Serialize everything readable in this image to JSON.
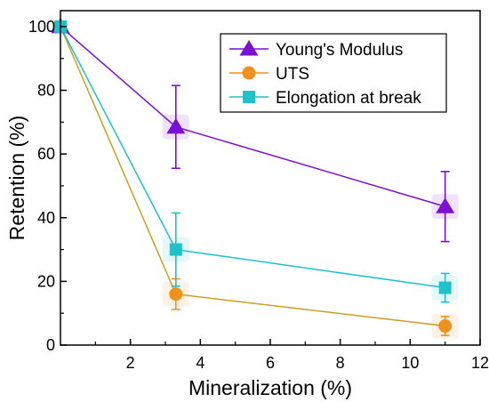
{
  "chart_data": {
    "type": "line",
    "title": "",
    "xlabel": "Mineralization (%)",
    "ylabel": "Retention (%)",
    "xlim": [
      0,
      12
    ],
    "ylim": [
      0,
      105
    ],
    "x_ticks": [
      2,
      4,
      6,
      8,
      10,
      12
    ],
    "y_ticks": [
      0,
      20,
      40,
      60,
      80,
      100
    ],
    "x_tick_labels": [
      "2",
      "4",
      "6",
      "8",
      "10",
      "12"
    ],
    "y_tick_labels": [
      "0",
      "20",
      "40",
      "60",
      "80",
      "100"
    ],
    "grid": false,
    "legend_position": "top-right",
    "series": [
      {
        "name": "Young's Modulus",
        "color": "#7b0fd6",
        "marker": "triangle",
        "x": [
          0,
          3.3,
          11
        ],
        "y": [
          100,
          68.5,
          43.5
        ],
        "err": [
          0,
          13,
          11
        ]
      },
      {
        "name": "UTS",
        "color": "#f0901e",
        "line_color": "#c9a020",
        "marker": "circle",
        "x": [
          0,
          3.3,
          11
        ],
        "y": [
          100,
          16,
          6
        ],
        "err": [
          0,
          4.8,
          3
        ]
      },
      {
        "name": "Elongation at break",
        "color": "#1ec2c8",
        "marker": "square",
        "x": [
          0,
          3.3,
          11
        ],
        "y": [
          100,
          30,
          18
        ],
        "err": [
          0,
          11.5,
          4.5
        ]
      }
    ]
  }
}
